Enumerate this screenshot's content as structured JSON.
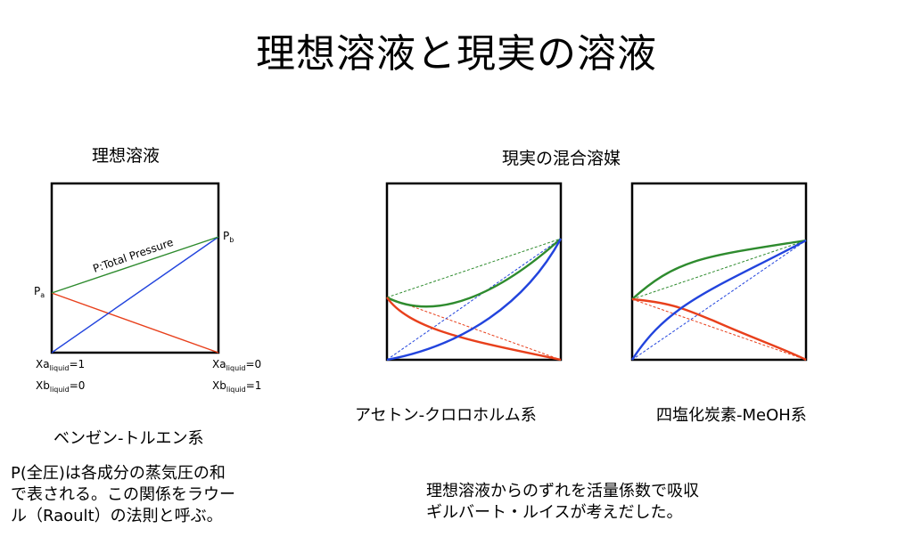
{
  "title": "理想溶液と現実の溶液",
  "ideal": {
    "heading": "理想溶液",
    "pa_main": "P",
    "pa_sub": "a",
    "pb_main": "P",
    "pb_sub": "b",
    "total_pressure_label": "P:Total Pressure",
    "xa_left": {
      "pre": "Xa",
      "sub": "liquid",
      "post": "=1"
    },
    "xb_left": {
      "pre": "Xb",
      "sub": "liquid",
      "post": "=0"
    },
    "xa_right": {
      "pre": "Xa",
      "sub": "liquid",
      "post": "=0"
    },
    "xb_right": {
      "pre": "Xb",
      "sub": "liquid",
      "post": "=1"
    },
    "caption": "ベンゼン-トルエン系",
    "explanation": [
      "P(全圧)は各成分の蒸気圧の和",
      "で表される。この関係をラウー",
      "ル（Raoult）の法則と呼ぶ。"
    ]
  },
  "real": {
    "heading": "現実の混合溶媒",
    "caption_left": "アセトン-クロロホルム系",
    "caption_right": "四塩化炭素-MeOH系",
    "explanation": [
      "理想溶液からのずれを活量係数で吸収",
      "ギルバート・ルイスが考えだした。"
    ]
  },
  "colors": {
    "total": "#2e8b2e",
    "a_partial": "#e8401c",
    "b_partial": "#2244dd",
    "frame": "#000000"
  },
  "chart_data": {
    "type": "line",
    "x": [
      0,
      1
    ],
    "series": [
      {
        "values": [
          0.3,
          0.0
        ],
        "color": "#e8401c"
      },
      {
        "values": [
          0.0,
          0.7
        ],
        "color": "#2244dd"
      },
      {
        "values": [
          0.3,
          0.7
        ],
        "color": "#2e8b2e"
      }
    ],
    "xlim": [
      0,
      1
    ],
    "ylim": [
      0,
      1
    ]
  }
}
